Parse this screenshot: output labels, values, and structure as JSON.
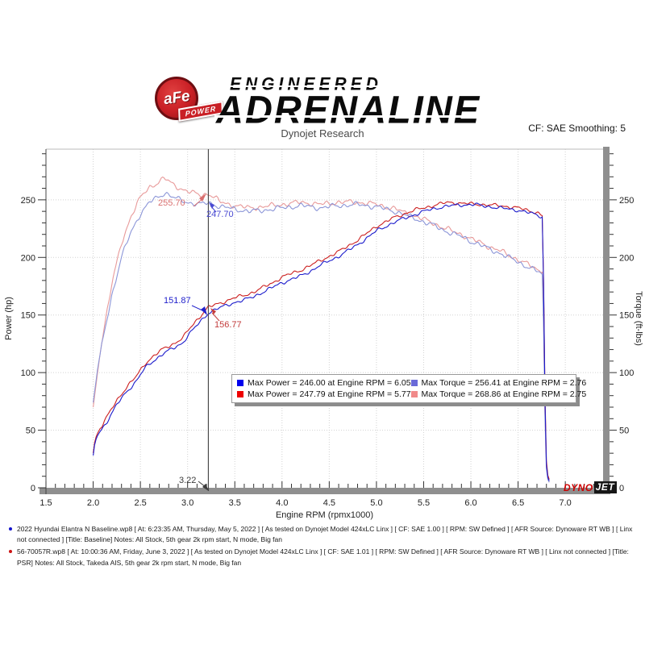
{
  "header": {
    "logo_text": "aFe",
    "logo_sub": "POWER",
    "brand_small": "ENGINEERED",
    "brand_big": "ADRENALINE",
    "subtitle": "Dynojet Research",
    "smoothing": "CF: SAE Smoothing: 5"
  },
  "watermark": {
    "part1": "DYNO",
    "part2": "JET"
  },
  "chart_data": {
    "type": "line",
    "xlabel": "Engine RPM (rpmx1000)",
    "ylabel_left": "Power (hp)",
    "ylabel_right": "Torque (ft-lbs)",
    "xlim": [
      1.5,
      7.4
    ],
    "ylim": [
      0,
      294
    ],
    "x_major_ticks": [
      1.5,
      2.0,
      2.5,
      3.0,
      3.5,
      4.0,
      4.5,
      5.0,
      5.5,
      6.0,
      6.5,
      7.0
    ],
    "x_minor_step": 0.1,
    "y_major_ticks": [
      0,
      50,
      100,
      150,
      200,
      250
    ],
    "y_minor_step": 10,
    "grid": "dotted",
    "cursor_rpm": 3.22,
    "legend": [
      {
        "swatch": "#0000ee",
        "label": "Max Power = 246.00 at Engine RPM = 6.05"
      },
      {
        "swatch": "#ee0000",
        "label": "Max Power = 247.79 at Engine RPM = 5.77"
      },
      {
        "swatch": "#6a6ad8",
        "label": "Max Torque = 256.41 at Engine RPM = 2.76"
      },
      {
        "swatch": "#f08a8a",
        "label": "Max Torque = 268.86 at Engine RPM = 2.75"
      }
    ],
    "annotations": [
      {
        "text": "255.70",
        "color": "#d97070"
      },
      {
        "text": "247.70",
        "color": "#4a4ad2"
      },
      {
        "text": "151.87",
        "color": "#2222cc"
      },
      {
        "text": "156.77",
        "color": "#c33c3c"
      },
      {
        "text": "3.22",
        "color": "#3c3c3c"
      }
    ],
    "series": [
      {
        "name": "torque_takeda",
        "axis": "right",
        "color": "#e89a9a",
        "noise": 1.7,
        "points": [
          [
            2.0,
            70
          ],
          [
            2.05,
            102
          ],
          [
            2.1,
            132
          ],
          [
            2.2,
            178
          ],
          [
            2.3,
            212
          ],
          [
            2.4,
            236
          ],
          [
            2.5,
            252
          ],
          [
            2.6,
            261
          ],
          [
            2.7,
            266
          ],
          [
            2.75,
            268.9
          ],
          [
            2.85,
            263
          ],
          [
            2.95,
            259
          ],
          [
            3.05,
            256
          ],
          [
            3.15,
            254
          ],
          [
            3.22,
            255.7
          ],
          [
            3.35,
            248
          ],
          [
            3.5,
            245
          ],
          [
            3.65,
            243
          ],
          [
            3.8,
            244
          ],
          [
            4.0,
            246
          ],
          [
            4.2,
            248
          ],
          [
            4.4,
            246
          ],
          [
            4.6,
            248
          ],
          [
            4.8,
            248
          ],
          [
            5.0,
            246
          ],
          [
            5.1,
            244
          ],
          [
            5.2,
            242
          ],
          [
            5.3,
            239
          ],
          [
            5.4,
            236
          ],
          [
            5.5,
            233
          ],
          [
            5.6,
            230
          ],
          [
            5.7,
            226
          ],
          [
            5.8,
            223
          ],
          [
            5.9,
            220
          ],
          [
            6.0,
            216
          ],
          [
            6.1,
            213
          ],
          [
            6.2,
            209
          ],
          [
            6.3,
            206
          ],
          [
            6.4,
            202
          ],
          [
            6.5,
            198
          ],
          [
            6.6,
            194
          ],
          [
            6.7,
            190
          ],
          [
            6.76,
            187
          ],
          [
            6.78,
            100
          ],
          [
            6.79,
            28
          ],
          [
            6.81,
            9
          ],
          [
            6.84,
            3
          ]
        ]
      },
      {
        "name": "torque_baseline",
        "axis": "right",
        "color": "#8c96d8",
        "noise": 1.7,
        "points": [
          [
            2.0,
            74
          ],
          [
            2.05,
            105
          ],
          [
            2.1,
            128
          ],
          [
            2.2,
            168
          ],
          [
            2.3,
            200
          ],
          [
            2.4,
            222
          ],
          [
            2.5,
            238
          ],
          [
            2.6,
            248
          ],
          [
            2.7,
            253
          ],
          [
            2.76,
            256.4
          ],
          [
            2.85,
            252
          ],
          [
            2.95,
            249
          ],
          [
            3.05,
            247
          ],
          [
            3.15,
            246
          ],
          [
            3.22,
            247.7
          ],
          [
            3.35,
            244
          ],
          [
            3.5,
            242
          ],
          [
            3.65,
            240
          ],
          [
            3.8,
            241
          ],
          [
            4.0,
            243
          ],
          [
            4.2,
            245
          ],
          [
            4.4,
            243
          ],
          [
            4.6,
            245
          ],
          [
            4.8,
            246
          ],
          [
            5.0,
            244
          ],
          [
            5.1,
            242
          ],
          [
            5.2,
            240
          ],
          [
            5.3,
            237
          ],
          [
            5.4,
            234
          ],
          [
            5.5,
            231
          ],
          [
            5.6,
            228
          ],
          [
            5.7,
            224
          ],
          [
            5.8,
            221
          ],
          [
            5.9,
            218
          ],
          [
            6.0,
            214
          ],
          [
            6.1,
            211
          ],
          [
            6.2,
            207
          ],
          [
            6.3,
            204
          ],
          [
            6.4,
            200
          ],
          [
            6.5,
            196
          ],
          [
            6.6,
            192
          ],
          [
            6.7,
            188
          ],
          [
            6.76,
            185
          ],
          [
            6.78,
            95
          ],
          [
            6.79,
            25
          ],
          [
            6.81,
            8
          ],
          [
            6.84,
            3
          ]
        ]
      },
      {
        "name": "power_takeda",
        "axis": "left",
        "color": "#cc2020",
        "noise": 1.1,
        "points": [
          [
            2.0,
            30
          ],
          [
            2.02,
            42
          ],
          [
            2.05,
            48
          ],
          [
            2.1,
            55
          ],
          [
            2.15,
            62
          ],
          [
            2.25,
            76
          ],
          [
            2.35,
            87
          ],
          [
            2.45,
            96
          ],
          [
            2.55,
            108
          ],
          [
            2.65,
            115
          ],
          [
            2.75,
            121
          ],
          [
            2.85,
            125
          ],
          [
            2.95,
            130
          ],
          [
            3.0,
            136
          ],
          [
            3.1,
            146
          ],
          [
            3.22,
            156.8
          ],
          [
            3.3,
            159
          ],
          [
            3.4,
            162
          ],
          [
            3.5,
            165
          ],
          [
            3.6,
            167
          ],
          [
            3.7,
            170
          ],
          [
            3.8,
            174
          ],
          [
            3.9,
            178
          ],
          [
            4.0,
            183
          ],
          [
            4.1,
            186
          ],
          [
            4.2,
            189
          ],
          [
            4.3,
            193
          ],
          [
            4.4,
            197
          ],
          [
            4.5,
            201
          ],
          [
            4.6,
            205
          ],
          [
            4.7,
            210
          ],
          [
            4.8,
            215
          ],
          [
            4.9,
            221
          ],
          [
            5.0,
            227
          ],
          [
            5.1,
            231
          ],
          [
            5.2,
            235
          ],
          [
            5.3,
            238
          ],
          [
            5.4,
            241
          ],
          [
            5.5,
            243
          ],
          [
            5.6,
            245
          ],
          [
            5.7,
            247
          ],
          [
            5.77,
            247.8
          ],
          [
            5.9,
            247
          ],
          [
            6.0,
            246.5
          ],
          [
            6.1,
            246
          ],
          [
            6.2,
            245.5
          ],
          [
            6.3,
            245
          ],
          [
            6.4,
            244
          ],
          [
            6.5,
            243
          ],
          [
            6.6,
            241
          ],
          [
            6.7,
            239
          ],
          [
            6.76,
            236
          ],
          [
            6.78,
            125
          ],
          [
            6.79,
            35
          ],
          [
            6.81,
            12
          ],
          [
            6.84,
            5
          ]
        ]
      },
      {
        "name": "power_baseline",
        "axis": "left",
        "color": "#1c1ccc",
        "noise": 1.1,
        "points": [
          [
            2.0,
            28
          ],
          [
            2.02,
            40
          ],
          [
            2.05,
            46
          ],
          [
            2.1,
            52
          ],
          [
            2.15,
            58
          ],
          [
            2.25,
            72
          ],
          [
            2.35,
            83
          ],
          [
            2.45,
            92
          ],
          [
            2.55,
            104
          ],
          [
            2.65,
            111
          ],
          [
            2.75,
            117
          ],
          [
            2.85,
            121
          ],
          [
            2.95,
            126
          ],
          [
            3.0,
            132
          ],
          [
            3.1,
            141
          ],
          [
            3.22,
            151.9
          ],
          [
            3.3,
            155
          ],
          [
            3.4,
            158
          ],
          [
            3.5,
            161
          ],
          [
            3.6,
            163
          ],
          [
            3.7,
            166
          ],
          [
            3.8,
            170
          ],
          [
            3.9,
            174
          ],
          [
            4.0,
            178
          ],
          [
            4.1,
            181
          ],
          [
            4.2,
            184
          ],
          [
            4.3,
            188
          ],
          [
            4.4,
            193
          ],
          [
            4.5,
            197
          ],
          [
            4.6,
            201
          ],
          [
            4.7,
            206
          ],
          [
            4.8,
            211
          ],
          [
            4.9,
            217
          ],
          [
            5.0,
            223
          ],
          [
            5.1,
            227
          ],
          [
            5.2,
            231
          ],
          [
            5.3,
            234
          ],
          [
            5.4,
            237
          ],
          [
            5.5,
            240
          ],
          [
            5.6,
            242
          ],
          [
            5.7,
            244
          ],
          [
            5.8,
            245
          ],
          [
            5.9,
            245.5
          ],
          [
            6.0,
            246
          ],
          [
            6.05,
            246
          ],
          [
            6.1,
            245
          ],
          [
            6.2,
            244
          ],
          [
            6.3,
            243
          ],
          [
            6.4,
            242
          ],
          [
            6.5,
            241
          ],
          [
            6.6,
            239
          ],
          [
            6.7,
            237
          ],
          [
            6.76,
            235
          ],
          [
            6.78,
            120
          ],
          [
            6.79,
            30
          ],
          [
            6.81,
            10
          ],
          [
            6.84,
            4
          ]
        ]
      }
    ]
  },
  "footer": {
    "runs": [
      {
        "bullet_color": "#1414cc",
        "text": "2022 Hyundai Elantra N Baseline.wp8 [ At: 6:23:35 AM, Thursday, May 5, 2022 ] [ As tested on Dynojet Model 424xLC Linx ] [ CF: SAE 1.00 ] [ RPM: SW Defined ] [ AFR Source: Dynoware RT WB ] [ Linx not connected ] [Title: Baseline]  Notes: All Stock, 5th gear 2k rpm start, N mode, Big fan"
      },
      {
        "bullet_color": "#cc1414",
        "text": "56-70057R.wp8 [ At: 10:00:36 AM, Friday, June 3, 2022 ] [ As tested on Dynojet Model 424xLC Linx ] [ CF: SAE 1.01 ] [ RPM: SW Defined ] [ AFR Source: Dynoware RT WB ] [ Linx not connected ] [Title: PSR]  Notes: All Stock, Takeda AIS, 5th gear 2k rpm start, N mode, Big fan"
      }
    ]
  }
}
